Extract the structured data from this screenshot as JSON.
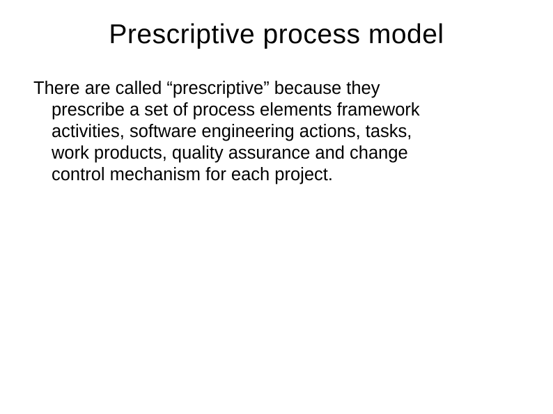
{
  "slide": {
    "title": "Prescriptive  process model",
    "body_line1": "There are called “prescriptive” because they",
    "body_line2": "prescribe a set of process elements framework",
    "body_line3": "activities, software engineering actions, tasks,",
    "body_line4": "work products, quality assurance and change",
    "body_line5": "control mechanism for each project."
  },
  "styling": {
    "background_color": "#ffffff",
    "text_color": "#000000",
    "title_fontsize": 39,
    "body_fontsize": 25.5,
    "font_family": "Arial"
  }
}
